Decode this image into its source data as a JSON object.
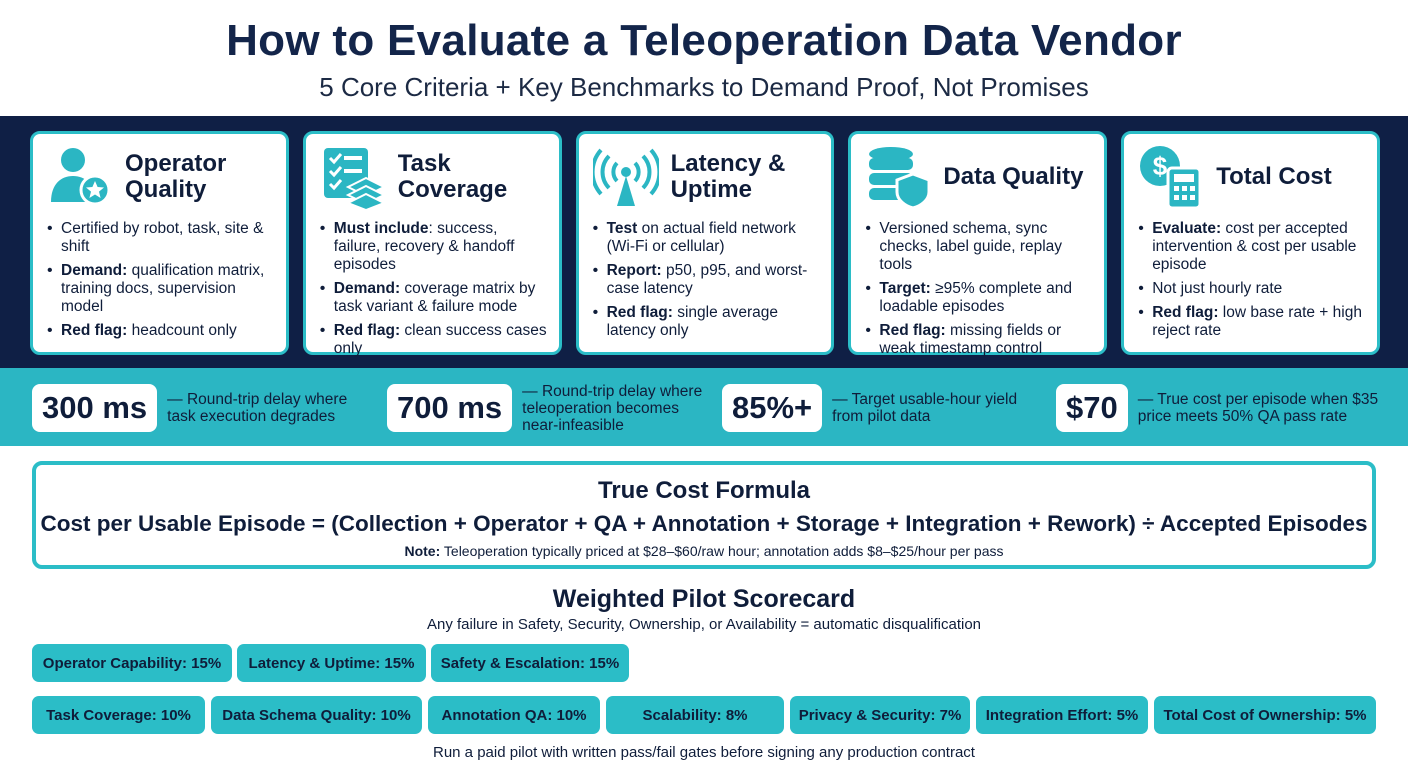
{
  "header": {
    "title": "How to Evaluate a Teleoperation Data Vendor",
    "subtitle": "5 Core Criteria + Key Benchmarks to Demand Proof, Not Promises"
  },
  "cards": [
    {
      "icon": "operator-icon",
      "title": "Operator Quality",
      "bullets": [
        {
          "bold": "",
          "text": "Certified by robot, task, site & shift"
        },
        {
          "bold": "Demand:",
          "text": " qualification matrix, training docs, supervision model"
        },
        {
          "bold": "Red flag:",
          "text": " headcount only"
        }
      ]
    },
    {
      "icon": "task-checklist-icon",
      "title": "Task Coverage",
      "bullets": [
        {
          "bold": "Must include",
          "text": ": success, failure, recovery & handoff episodes"
        },
        {
          "bold": "Demand:",
          "text": " coverage matrix by task variant & failure mode"
        },
        {
          "bold": "Red flag:",
          "text": " clean success cases only"
        }
      ]
    },
    {
      "icon": "signal-tower-icon",
      "title": "Latency & Uptime",
      "bullets": [
        {
          "bold": "Test",
          "text": " on actual field network (Wi-Fi or cellular)"
        },
        {
          "bold": "Report:",
          "text": " p50, p95, and worst-case latency"
        },
        {
          "bold": "Red flag:",
          "text": " single average latency only"
        }
      ]
    },
    {
      "icon": "database-shield-icon",
      "title": "Data Quality",
      "bullets": [
        {
          "bold": "",
          "text": "Versioned schema, sync checks, label guide, replay tools"
        },
        {
          "bold": "Target:",
          "text": " ≥95% complete and loadable episodes"
        },
        {
          "bold": "Red flag:",
          "text": " missing fields or weak timestamp control"
        }
      ]
    },
    {
      "icon": "cost-calculator-icon",
      "title": "Total Cost",
      "bullets": [
        {
          "bold": "Evaluate:",
          "text": " cost per accepted intervention & cost per usable episode"
        },
        {
          "bold": "",
          "text": "Not just hourly rate"
        },
        {
          "bold": "Red flag:",
          "text": " low base rate + high reject rate"
        }
      ]
    }
  ],
  "benchmarks": [
    {
      "value": "300 ms",
      "desc": "— Round-trip delay where task execution degrades"
    },
    {
      "value": "700 ms",
      "desc": "— Round-trip delay where teleoperation becomes near-infeasible"
    },
    {
      "value": "85%+",
      "desc": "— Target usable-hour yield from pilot data"
    },
    {
      "value": "$70",
      "desc": "— True cost per episode when $35 price meets 50% QA pass rate"
    }
  ],
  "formula": {
    "title": "True Cost Formula",
    "equation": "Cost per Usable Episode = (Collection + Operator + QA + Annotation + Storage + Integration + Rework) ÷ Accepted Episodes",
    "note_label": "Note:",
    "note_text": " Teleoperation typically priced at $28–$60/raw hour; annotation adds $8–$25/hour per pass"
  },
  "scorecard": {
    "title": "Weighted Pilot Scorecard",
    "subtitle": "Any failure in Safety, Security, Ownership, or Availability = automatic disqualification",
    "items": [
      "Operator Capability: 15%",
      "Latency & Uptime: 15%",
      "Safety & Escalation: 15%",
      "Task Coverage: 10%",
      "Data Schema Quality: 10%",
      "Annotation QA: 10%",
      "Scalability: 8%",
      "Privacy & Security: 7%",
      "Integration Effort: 5%",
      "Total Cost of Ownership: 5%"
    ],
    "footer": "Run a paid pilot with written pass/fail gates before signing any production contract"
  },
  "colors": {
    "navy": "#0f1f45",
    "teal": "#2bbdc7",
    "text": "#0f1d3a"
  }
}
